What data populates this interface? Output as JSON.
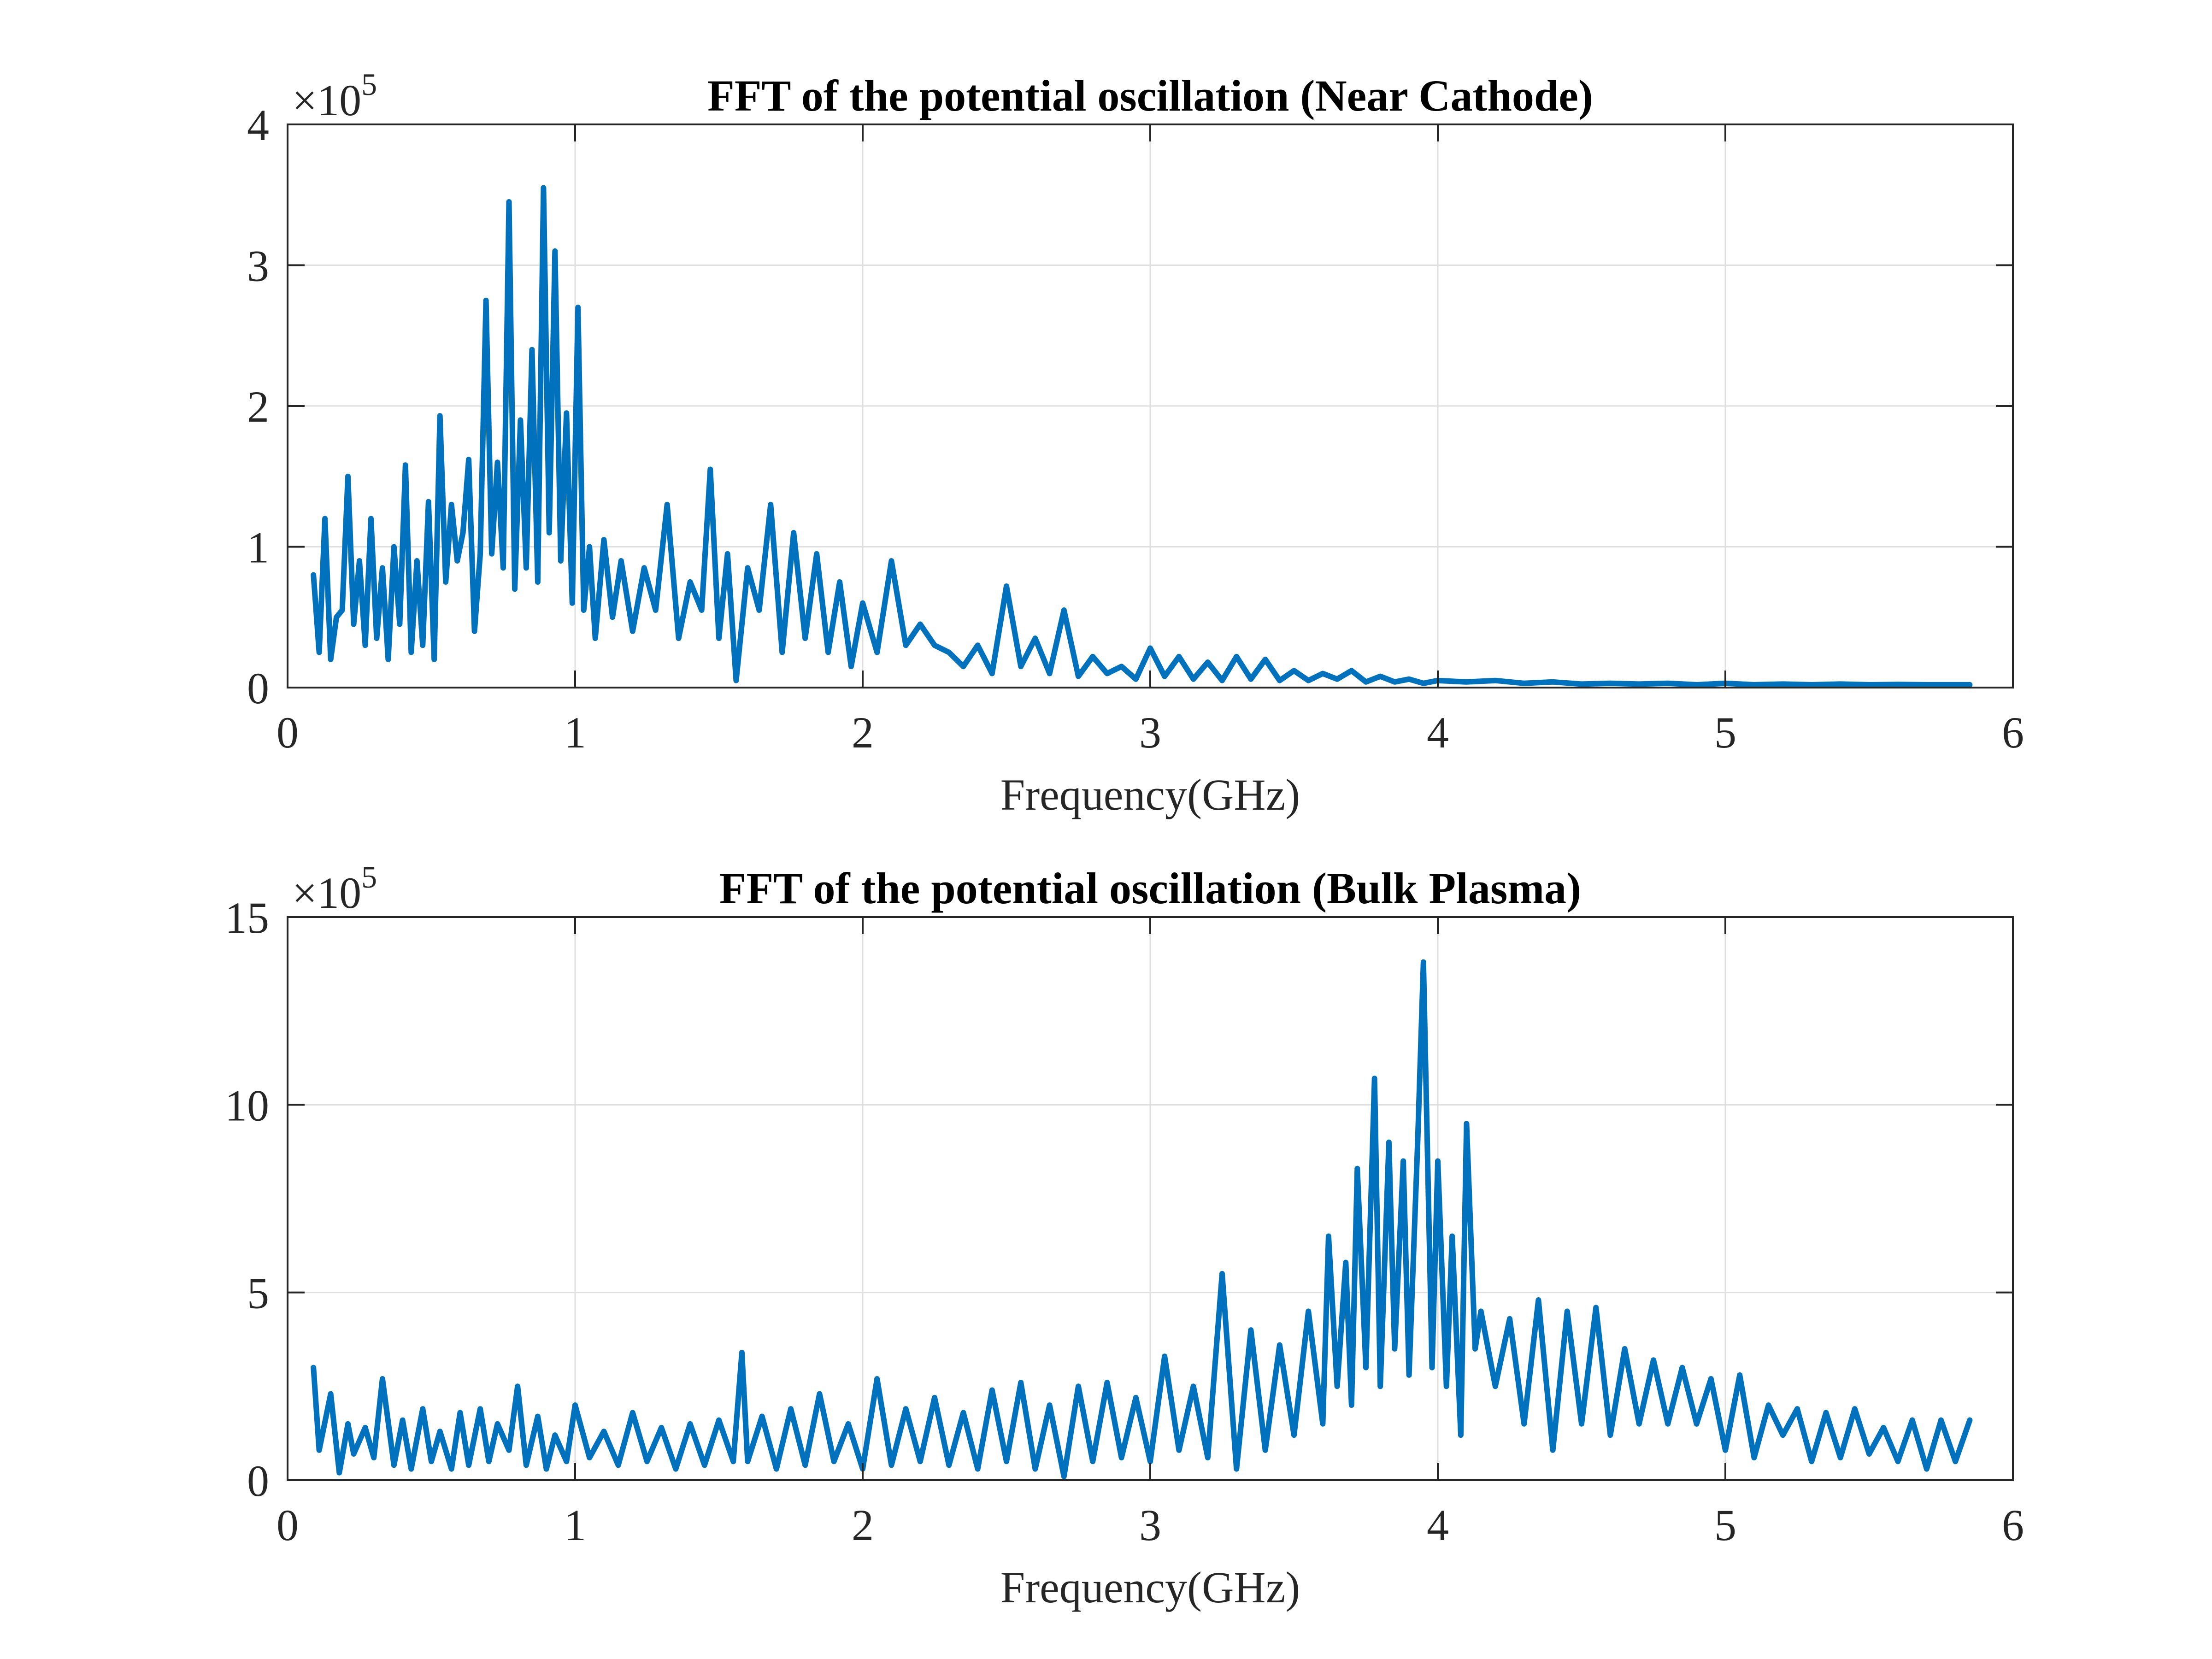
{
  "chart_data": [
    {
      "type": "line",
      "title": "FFT of the potential oscillation (Near Cathode)",
      "xlabel": "Frequency(GHz)",
      "ylabel": "",
      "exponent_label": "×10",
      "exponent_power": "5",
      "xlim": [
        0,
        6
      ],
      "ylim": [
        0,
        4
      ],
      "xticks": [
        "0",
        "1",
        "2",
        "3",
        "4",
        "5",
        "6"
      ],
      "yticks": [
        "0",
        "1",
        "2",
        "3",
        "4"
      ],
      "grid": true,
      "line_color": "#0072BD",
      "series": [
        {
          "x": [
            0.09,
            0.11,
            0.13,
            0.15,
            0.17,
            0.19,
            0.21,
            0.23,
            0.25,
            0.27,
            0.29,
            0.31,
            0.33,
            0.35,
            0.37,
            0.39,
            0.41,
            0.43,
            0.45,
            0.47,
            0.49,
            0.51,
            0.53,
            0.55,
            0.57,
            0.59,
            0.61,
            0.63,
            0.65,
            0.67,
            0.69,
            0.71,
            0.73,
            0.75,
            0.77,
            0.79,
            0.81,
            0.83,
            0.85,
            0.87,
            0.89,
            0.91,
            0.93,
            0.95,
            0.97,
            0.99,
            1.01,
            1.03,
            1.05,
            1.07,
            1.1,
            1.13,
            1.16,
            1.2,
            1.24,
            1.28,
            1.32,
            1.36,
            1.4,
            1.44,
            1.47,
            1.5,
            1.53,
            1.56,
            1.6,
            1.64,
            1.68,
            1.72,
            1.76,
            1.8,
            1.84,
            1.88,
            1.92,
            1.96,
            2.0,
            2.05,
            2.1,
            2.15,
            2.2,
            2.25,
            2.3,
            2.35,
            2.4,
            2.45,
            2.5,
            2.55,
            2.6,
            2.65,
            2.7,
            2.75,
            2.8,
            2.85,
            2.9,
            2.95,
            3.0,
            3.05,
            3.1,
            3.15,
            3.2,
            3.25,
            3.3,
            3.35,
            3.4,
            3.45,
            3.5,
            3.55,
            3.6,
            3.65,
            3.7,
            3.75,
            3.8,
            3.85,
            3.9,
            3.95,
            4.0,
            4.1,
            4.2,
            4.3,
            4.4,
            4.5,
            4.6,
            4.7,
            4.8,
            4.9,
            5.0,
            5.1,
            5.2,
            5.3,
            5.4,
            5.5,
            5.6,
            5.7,
            5.8,
            5.85
          ],
          "y": [
            0.8,
            0.25,
            1.2,
            0.2,
            0.5,
            0.55,
            1.5,
            0.45,
            0.9,
            0.3,
            1.2,
            0.35,
            0.85,
            0.2,
            1.0,
            0.45,
            1.58,
            0.25,
            0.9,
            0.3,
            1.32,
            0.2,
            1.93,
            0.75,
            1.3,
            0.9,
            1.1,
            1.62,
            0.4,
            0.95,
            2.75,
            0.95,
            1.6,
            0.85,
            3.45,
            0.7,
            1.9,
            0.85,
            2.4,
            0.75,
            3.55,
            1.1,
            3.1,
            0.9,
            1.95,
            0.6,
            2.7,
            0.55,
            1.0,
            0.35,
            1.05,
            0.5,
            0.9,
            0.4,
            0.85,
            0.55,
            1.3,
            0.35,
            0.75,
            0.55,
            1.55,
            0.35,
            0.95,
            0.05,
            0.85,
            0.55,
            1.3,
            0.25,
            1.1,
            0.35,
            0.95,
            0.25,
            0.75,
            0.15,
            0.6,
            0.25,
            0.9,
            0.3,
            0.45,
            0.3,
            0.25,
            0.15,
            0.3,
            0.1,
            0.72,
            0.15,
            0.35,
            0.1,
            0.55,
            0.08,
            0.22,
            0.1,
            0.15,
            0.06,
            0.28,
            0.08,
            0.22,
            0.06,
            0.18,
            0.05,
            0.22,
            0.06,
            0.2,
            0.05,
            0.12,
            0.05,
            0.1,
            0.06,
            0.12,
            0.04,
            0.08,
            0.04,
            0.06,
            0.03,
            0.05,
            0.04,
            0.05,
            0.03,
            0.04,
            0.025,
            0.03,
            0.025,
            0.03,
            0.02,
            0.03,
            0.02,
            0.025,
            0.02,
            0.025,
            0.02,
            0.022,
            0.02,
            0.02,
            0.02
          ]
        }
      ]
    },
    {
      "type": "line",
      "title": "FFT of the potential oscillation (Bulk Plasma)",
      "xlabel": "Frequency(GHz)",
      "ylabel": "",
      "exponent_label": "×10",
      "exponent_power": "5",
      "xlim": [
        0,
        6
      ],
      "ylim": [
        0,
        15
      ],
      "xticks": [
        "0",
        "1",
        "2",
        "3",
        "4",
        "5",
        "6"
      ],
      "yticks": [
        "0",
        "5",
        "10",
        "15"
      ],
      "grid": true,
      "line_color": "#0072BD",
      "series": [
        {
          "x": [
            0.09,
            0.11,
            0.15,
            0.18,
            0.21,
            0.23,
            0.27,
            0.3,
            0.33,
            0.37,
            0.4,
            0.43,
            0.47,
            0.5,
            0.53,
            0.57,
            0.6,
            0.63,
            0.67,
            0.7,
            0.73,
            0.77,
            0.8,
            0.83,
            0.87,
            0.9,
            0.93,
            0.97,
            1.0,
            1.05,
            1.1,
            1.15,
            1.2,
            1.25,
            1.3,
            1.35,
            1.4,
            1.45,
            1.5,
            1.55,
            1.58,
            1.6,
            1.65,
            1.7,
            1.75,
            1.8,
            1.85,
            1.9,
            1.95,
            2.0,
            2.05,
            2.1,
            2.15,
            2.2,
            2.25,
            2.3,
            2.35,
            2.4,
            2.45,
            2.5,
            2.55,
            2.6,
            2.65,
            2.7,
            2.75,
            2.8,
            2.85,
            2.9,
            2.95,
            3.0,
            3.05,
            3.1,
            3.15,
            3.2,
            3.25,
            3.3,
            3.35,
            3.4,
            3.45,
            3.5,
            3.55,
            3.6,
            3.62,
            3.65,
            3.68,
            3.7,
            3.72,
            3.75,
            3.78,
            3.8,
            3.83,
            3.85,
            3.88,
            3.9,
            3.93,
            3.95,
            3.98,
            4.0,
            4.03,
            4.05,
            4.08,
            4.1,
            4.13,
            4.15,
            4.2,
            4.25,
            4.3,
            4.35,
            4.4,
            4.45,
            4.5,
            4.55,
            4.6,
            4.65,
            4.7,
            4.75,
            4.8,
            4.85,
            4.9,
            4.95,
            5.0,
            5.05,
            5.1,
            5.15,
            5.2,
            5.25,
            5.3,
            5.35,
            5.4,
            5.45,
            5.5,
            5.55,
            5.6,
            5.65,
            5.7,
            5.75,
            5.8,
            5.85
          ],
          "y": [
            3.0,
            0.8,
            2.3,
            0.2,
            1.5,
            0.7,
            1.4,
            0.6,
            2.7,
            0.4,
            1.6,
            0.3,
            1.9,
            0.5,
            1.3,
            0.3,
            1.8,
            0.4,
            1.9,
            0.5,
            1.5,
            0.8,
            2.5,
            0.4,
            1.7,
            0.3,
            1.2,
            0.5,
            2.0,
            0.6,
            1.3,
            0.4,
            1.8,
            0.5,
            1.4,
            0.3,
            1.5,
            0.4,
            1.6,
            0.5,
            3.4,
            0.5,
            1.7,
            0.3,
            1.9,
            0.4,
            2.3,
            0.5,
            1.5,
            0.3,
            2.7,
            0.4,
            1.9,
            0.5,
            2.2,
            0.4,
            1.8,
            0.3,
            2.4,
            0.5,
            2.6,
            0.3,
            2.0,
            0.1,
            2.5,
            0.5,
            2.6,
            0.6,
            2.2,
            0.5,
            3.3,
            0.8,
            2.5,
            0.6,
            5.5,
            0.3,
            4.0,
            0.8,
            3.6,
            1.2,
            4.5,
            1.5,
            6.5,
            2.5,
            5.8,
            2.0,
            8.3,
            3.0,
            10.7,
            2.5,
            9.0,
            3.5,
            8.5,
            2.8,
            9.0,
            13.8,
            3.0,
            8.5,
            2.5,
            6.5,
            1.2,
            9.5,
            3.5,
            4.5,
            2.5,
            4.3,
            1.5,
            4.8,
            0.8,
            4.5,
            1.5,
            4.6,
            1.2,
            3.5,
            1.5,
            3.2,
            1.5,
            3.0,
            1.5,
            2.7,
            0.8,
            2.8,
            0.6,
            2.0,
            1.2,
            1.9,
            0.5,
            1.8,
            0.6,
            1.9,
            0.7,
            1.4,
            0.5,
            1.6,
            0.3,
            1.6,
            0.5,
            1.6
          ]
        }
      ]
    }
  ]
}
